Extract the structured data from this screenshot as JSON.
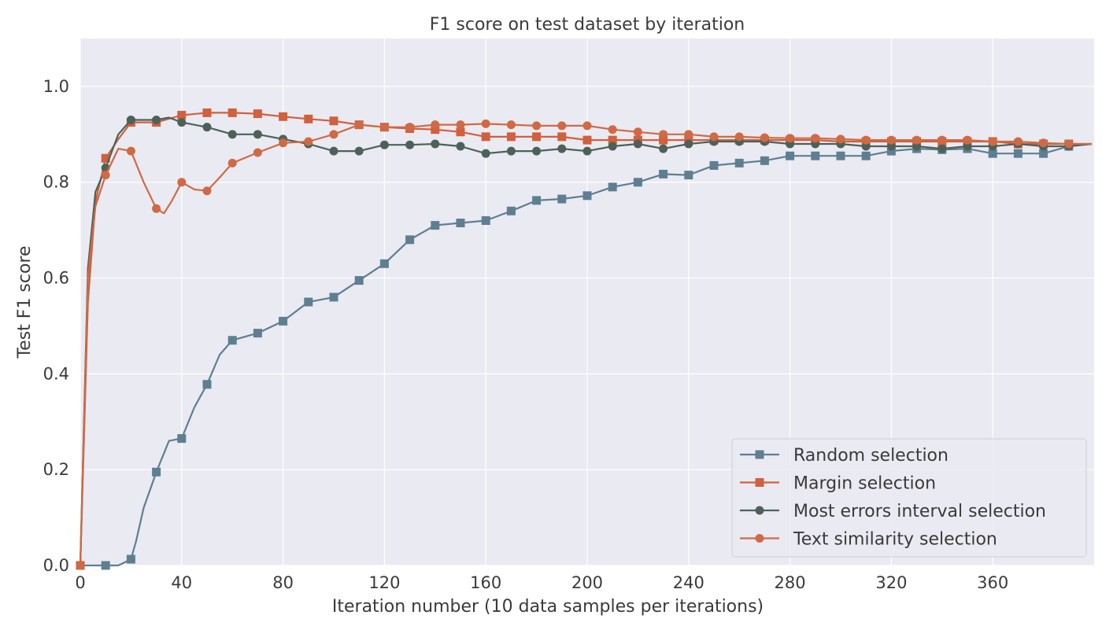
{
  "chart_data": {
    "type": "line",
    "title": "F1 score on test dataset by iteration",
    "xlabel": "Iteration number (10  data samples per iterations)",
    "ylabel": "Test F1 score",
    "xlim": [
      0,
      400
    ],
    "ylim": [
      0,
      1.1
    ],
    "xticks": [
      0,
      40,
      80,
      120,
      160,
      200,
      240,
      280,
      320,
      360
    ],
    "yticks": [
      0.0,
      0.2,
      0.4,
      0.6,
      0.8,
      1.0
    ],
    "xtick_labels": [
      "0",
      "40",
      "80",
      "120",
      "160",
      "200",
      "240",
      "280",
      "320",
      "360"
    ],
    "ytick_labels": [
      "0.0",
      "0.2",
      "0.4",
      "0.6",
      "0.8",
      "1.0"
    ],
    "grid": true,
    "legend_position": "lower-right",
    "series": [
      {
        "name": "Random selection",
        "color": "#5e7f91",
        "marker": "square",
        "x": [
          0,
          10,
          15,
          20,
          22,
          25,
          30,
          35,
          40,
          45,
          50,
          55,
          60,
          70,
          80,
          90,
          100,
          110,
          120,
          130,
          140,
          150,
          160,
          170,
          180,
          190,
          200,
          210,
          220,
          230,
          240,
          250,
          260,
          270,
          280,
          290,
          300,
          310,
          320,
          330,
          340,
          350,
          360,
          370,
          380,
          390,
          399
        ],
        "y": [
          0.0,
          0.0,
          0.0,
          0.013,
          0.05,
          0.12,
          0.195,
          0.26,
          0.265,
          0.33,
          0.378,
          0.44,
          0.47,
          0.485,
          0.51,
          0.55,
          0.56,
          0.595,
          0.63,
          0.68,
          0.71,
          0.715,
          0.72,
          0.74,
          0.762,
          0.765,
          0.772,
          0.79,
          0.8,
          0.817,
          0.815,
          0.835,
          0.84,
          0.845,
          0.855,
          0.855,
          0.855,
          0.855,
          0.865,
          0.87,
          0.868,
          0.87,
          0.86,
          0.86,
          0.86,
          0.875,
          0.88
        ],
        "marker_x": [
          0,
          10,
          20,
          30,
          40,
          50,
          60,
          70,
          80,
          90,
          100,
          110,
          120,
          130,
          140,
          150,
          160,
          170,
          180,
          190,
          200,
          210,
          220,
          230,
          240,
          250,
          260,
          270,
          280,
          290,
          300,
          310,
          320,
          330,
          340,
          350,
          360,
          370,
          380,
          390
        ],
        "marker_y": [
          0.0,
          0.0,
          0.013,
          0.195,
          0.265,
          0.378,
          0.47,
          0.485,
          0.51,
          0.55,
          0.56,
          0.595,
          0.63,
          0.68,
          0.71,
          0.715,
          0.72,
          0.74,
          0.762,
          0.765,
          0.772,
          0.79,
          0.8,
          0.817,
          0.815,
          0.835,
          0.84,
          0.845,
          0.855,
          0.855,
          0.855,
          0.855,
          0.865,
          0.87,
          0.868,
          0.87,
          0.86,
          0.86,
          0.86,
          0.875
        ]
      },
      {
        "name": "Margin selection",
        "color": "#d0603e",
        "marker": "square",
        "x": [
          0,
          3,
          6,
          10,
          15,
          20,
          30,
          40,
          50,
          60,
          70,
          80,
          90,
          100,
          110,
          120,
          130,
          140,
          150,
          160,
          170,
          180,
          190,
          200,
          210,
          220,
          230,
          240,
          250,
          260,
          270,
          280,
          290,
          300,
          310,
          320,
          330,
          340,
          350,
          360,
          370,
          380,
          390,
          399
        ],
        "y": [
          0.0,
          0.55,
          0.76,
          0.85,
          0.89,
          0.925,
          0.925,
          0.94,
          0.945,
          0.945,
          0.943,
          0.937,
          0.932,
          0.928,
          0.92,
          0.915,
          0.912,
          0.91,
          0.905,
          0.895,
          0.895,
          0.895,
          0.895,
          0.888,
          0.888,
          0.888,
          0.888,
          0.888,
          0.888,
          0.888,
          0.888,
          0.888,
          0.888,
          0.885,
          0.885,
          0.885,
          0.885,
          0.885,
          0.885,
          0.885,
          0.88,
          0.88,
          0.88,
          0.88
        ],
        "marker_x": [
          0,
          10,
          20,
          30,
          40,
          50,
          60,
          70,
          80,
          90,
          100,
          110,
          120,
          130,
          140,
          150,
          160,
          170,
          180,
          190,
          200,
          210,
          220,
          230,
          240,
          250,
          260,
          270,
          280,
          290,
          300,
          310,
          320,
          330,
          340,
          350,
          360,
          370,
          380,
          390
        ],
        "marker_y": [
          0.0,
          0.85,
          0.925,
          0.925,
          0.94,
          0.945,
          0.945,
          0.943,
          0.937,
          0.932,
          0.928,
          0.92,
          0.915,
          0.912,
          0.91,
          0.905,
          0.895,
          0.895,
          0.895,
          0.895,
          0.888,
          0.888,
          0.888,
          0.888,
          0.888,
          0.888,
          0.888,
          0.888,
          0.888,
          0.888,
          0.885,
          0.885,
          0.885,
          0.885,
          0.885,
          0.885,
          0.885,
          0.88,
          0.88,
          0.88
        ]
      },
      {
        "name": "Most errors interval selection",
        "color": "#4c6258",
        "marker": "circle",
        "x": [
          0,
          3,
          6,
          10,
          15,
          20,
          30,
          35,
          40,
          50,
          60,
          70,
          80,
          90,
          100,
          110,
          120,
          130,
          140,
          150,
          160,
          170,
          180,
          190,
          200,
          210,
          220,
          230,
          240,
          250,
          260,
          270,
          280,
          290,
          300,
          310,
          320,
          330,
          340,
          350,
          360,
          370,
          380,
          390,
          399
        ],
        "y": [
          0.0,
          0.62,
          0.78,
          0.83,
          0.9,
          0.93,
          0.93,
          0.935,
          0.925,
          0.915,
          0.9,
          0.9,
          0.89,
          0.88,
          0.865,
          0.865,
          0.878,
          0.878,
          0.88,
          0.875,
          0.86,
          0.865,
          0.865,
          0.87,
          0.865,
          0.875,
          0.88,
          0.87,
          0.88,
          0.885,
          0.885,
          0.885,
          0.88,
          0.88,
          0.88,
          0.875,
          0.875,
          0.875,
          0.87,
          0.875,
          0.875,
          0.88,
          0.875,
          0.875,
          0.88
        ],
        "marker_x": [
          0,
          10,
          20,
          30,
          40,
          50,
          60,
          70,
          80,
          90,
          100,
          110,
          120,
          130,
          140,
          150,
          160,
          170,
          180,
          190,
          200,
          210,
          220,
          230,
          240,
          250,
          260,
          270,
          280,
          290,
          300,
          310,
          320,
          330,
          340,
          350,
          360,
          370,
          380,
          390
        ],
        "marker_y": [
          0.0,
          0.83,
          0.93,
          0.93,
          0.925,
          0.915,
          0.9,
          0.9,
          0.89,
          0.88,
          0.865,
          0.865,
          0.878,
          0.878,
          0.88,
          0.875,
          0.86,
          0.865,
          0.865,
          0.87,
          0.865,
          0.875,
          0.88,
          0.87,
          0.88,
          0.885,
          0.885,
          0.885,
          0.88,
          0.88,
          0.88,
          0.875,
          0.875,
          0.875,
          0.87,
          0.875,
          0.875,
          0.88,
          0.875,
          0.875
        ]
      },
      {
        "name": "Text similarity selection",
        "color": "#cf6a45",
        "marker": "circle",
        "x": [
          0,
          3,
          6,
          10,
          15,
          20,
          25,
          30,
          33,
          36,
          40,
          45,
          50,
          55,
          60,
          70,
          80,
          90,
          100,
          110,
          120,
          130,
          140,
          150,
          160,
          170,
          180,
          190,
          200,
          210,
          220,
          230,
          240,
          250,
          260,
          270,
          280,
          290,
          300,
          310,
          320,
          330,
          340,
          350,
          360,
          370,
          380,
          390,
          399
        ],
        "y": [
          0.0,
          0.6,
          0.75,
          0.815,
          0.87,
          0.865,
          0.8,
          0.745,
          0.735,
          0.76,
          0.8,
          0.785,
          0.782,
          0.81,
          0.84,
          0.862,
          0.882,
          0.885,
          0.9,
          0.92,
          0.915,
          0.915,
          0.92,
          0.92,
          0.922,
          0.92,
          0.918,
          0.918,
          0.918,
          0.91,
          0.905,
          0.9,
          0.9,
          0.895,
          0.895,
          0.893,
          0.892,
          0.892,
          0.89,
          0.888,
          0.888,
          0.888,
          0.888,
          0.888,
          0.885,
          0.885,
          0.882,
          0.88,
          0.88
        ],
        "marker_x": [
          0,
          10,
          20,
          30,
          40,
          50,
          60,
          70,
          80,
          90,
          100,
          110,
          120,
          130,
          140,
          150,
          160,
          170,
          180,
          190,
          200,
          210,
          220,
          230,
          240,
          250,
          260,
          270,
          280,
          290,
          300,
          310,
          320,
          330,
          340,
          350,
          360,
          370,
          380,
          390
        ],
        "marker_y": [
          0.0,
          0.815,
          0.865,
          0.745,
          0.8,
          0.782,
          0.84,
          0.862,
          0.882,
          0.885,
          0.9,
          0.92,
          0.915,
          0.915,
          0.92,
          0.92,
          0.922,
          0.92,
          0.918,
          0.918,
          0.918,
          0.91,
          0.905,
          0.9,
          0.9,
          0.895,
          0.895,
          0.893,
          0.892,
          0.892,
          0.89,
          0.888,
          0.888,
          0.888,
          0.888,
          0.888,
          0.885,
          0.885,
          0.882,
          0.88
        ]
      }
    ]
  }
}
